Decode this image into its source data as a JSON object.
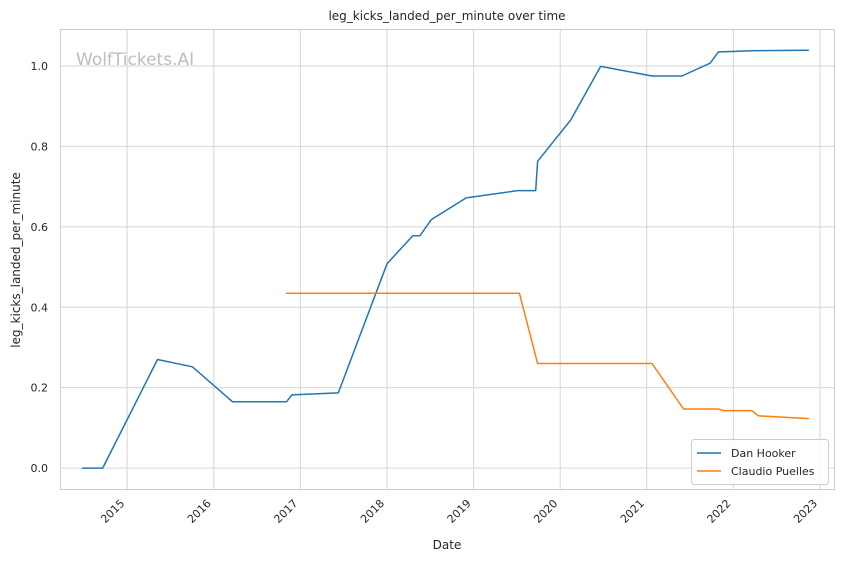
{
  "chart_data": {
    "type": "line",
    "title": "leg_kicks_landed_per_minute over time",
    "xlabel": "Date",
    "ylabel": "leg_kicks_landed_per_minute",
    "watermark": "WolfTickets.AI",
    "x_ticks": [
      "2015",
      "2016",
      "2017",
      "2018",
      "2019",
      "2020",
      "2021",
      "2022",
      "2023"
    ],
    "y_ticks": [
      "0.0",
      "0.2",
      "0.4",
      "0.6",
      "0.8",
      "1.0"
    ],
    "xlim": [
      "2014-03-24",
      "2023-03-01"
    ],
    "ylim": [
      -0.052,
      1.092
    ],
    "grid": true,
    "legend_position": "lower-right",
    "series": [
      {
        "name": "Dan Hooker",
        "color": "#1f77b4",
        "points": [
          [
            "2014-06-28",
            0.0
          ],
          [
            "2014-09-20",
            0.0
          ],
          [
            "2015-05-09",
            0.27
          ],
          [
            "2015-10-03",
            0.252
          ],
          [
            "2016-03-20",
            0.165
          ],
          [
            "2016-11-04",
            0.165
          ],
          [
            "2016-11-26",
            0.182
          ],
          [
            "2017-06-10",
            0.187
          ],
          [
            "2018-01-01",
            0.508
          ],
          [
            "2018-04-20",
            0.578
          ],
          [
            "2018-05-20",
            0.578
          ],
          [
            "2018-07-07",
            0.618
          ],
          [
            "2018-12-01",
            0.672
          ],
          [
            "2019-07-06",
            0.69
          ],
          [
            "2019-09-20",
            0.69
          ],
          [
            "2019-09-28",
            0.763
          ],
          [
            "2020-02-15",
            0.866
          ],
          [
            "2020-06-20",
            0.999
          ],
          [
            "2021-01-23",
            0.975
          ],
          [
            "2021-05-29",
            0.975
          ],
          [
            "2021-09-25",
            1.007
          ],
          [
            "2021-10-30",
            1.035
          ],
          [
            "2021-12-25",
            1.036
          ],
          [
            "2022-03-15",
            1.038
          ],
          [
            "2022-11-12",
            1.039
          ]
        ]
      },
      {
        "name": "Claudio Puelles",
        "color": "#ff7f0e",
        "points": [
          [
            "2016-11-04",
            0.435
          ],
          [
            "2019-07-13",
            0.435
          ],
          [
            "2019-09-28",
            0.26
          ],
          [
            "2021-01-23",
            0.26
          ],
          [
            "2021-06-05",
            0.147
          ],
          [
            "2021-10-30",
            0.147
          ],
          [
            "2021-11-20",
            0.143
          ],
          [
            "2022-03-19",
            0.143
          ],
          [
            "2022-04-16",
            0.13
          ],
          [
            "2022-11-12",
            0.123
          ]
        ]
      }
    ]
  }
}
